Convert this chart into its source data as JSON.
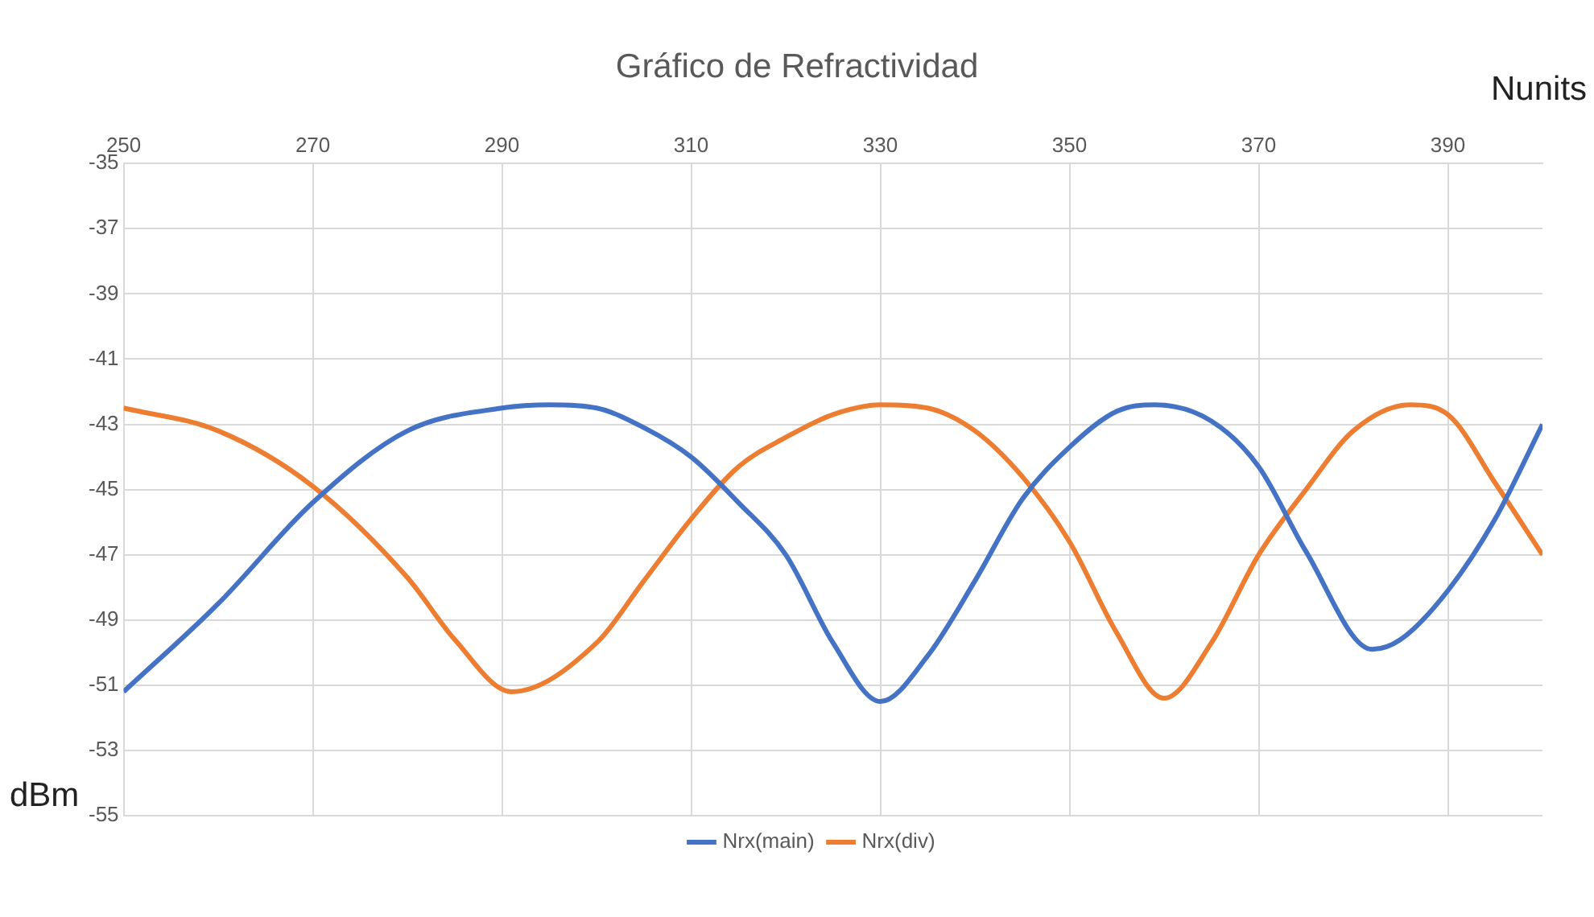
{
  "chart_data": {
    "type": "line",
    "title": "Gráfico de Refractividad",
    "xlabel": "Nunits",
    "ylabel": "dBm",
    "xlim": [
      250,
      400
    ],
    "xticks": [
      250,
      270,
      290,
      310,
      330,
      350,
      370,
      390
    ],
    "ylim": [
      -55,
      -35
    ],
    "yticks": [
      -55,
      -53,
      -51,
      -49,
      -47,
      -45,
      -43,
      -41,
      -39,
      -37,
      -35
    ],
    "grid": true,
    "legend": "bottom",
    "marker": "none",
    "line_style": "solid",
    "series": [
      {
        "name": "Nrx(main)",
        "color": "#4472c4",
        "x": [
          250,
          260,
          270,
          280,
          290,
          295,
          300,
          305,
          310,
          315,
          320,
          325,
          330,
          335,
          340,
          345,
          350,
          355,
          359,
          365,
          370,
          375,
          382,
          385,
          390,
          395,
          400
        ],
        "values": [
          -51.2,
          -48.5,
          -45.4,
          -43.2,
          -42.5,
          -42.4,
          -42.5,
          -43.1,
          -44.0,
          -45.4,
          -47.0,
          -49.7,
          -51.5,
          -50.1,
          -47.8,
          -45.3,
          -43.7,
          -42.6,
          -42.4,
          -42.9,
          -44.3,
          -46.9,
          -49.9,
          -49.6,
          -48.1,
          -45.9,
          -43.0
        ]
      },
      {
        "name": "Nrx(div)",
        "color": "#ed7d31",
        "x": [
          250,
          260,
          270,
          280,
          285,
          291,
          300,
          305,
          310,
          315,
          320,
          325,
          330,
          335,
          340,
          345,
          350,
          355,
          360,
          365,
          370,
          375,
          380,
          386,
          390,
          395,
          400
        ],
        "values": [
          -42.5,
          -43.2,
          -44.9,
          -47.7,
          -49.6,
          -51.2,
          -49.7,
          -47.8,
          -45.9,
          -44.3,
          -43.4,
          -42.7,
          -42.4,
          -42.5,
          -43.2,
          -44.6,
          -46.6,
          -49.4,
          -51.4,
          -49.7,
          -47.0,
          -45.0,
          -43.2,
          -42.4,
          -42.7,
          -44.8,
          -47.0
        ]
      }
    ]
  }
}
